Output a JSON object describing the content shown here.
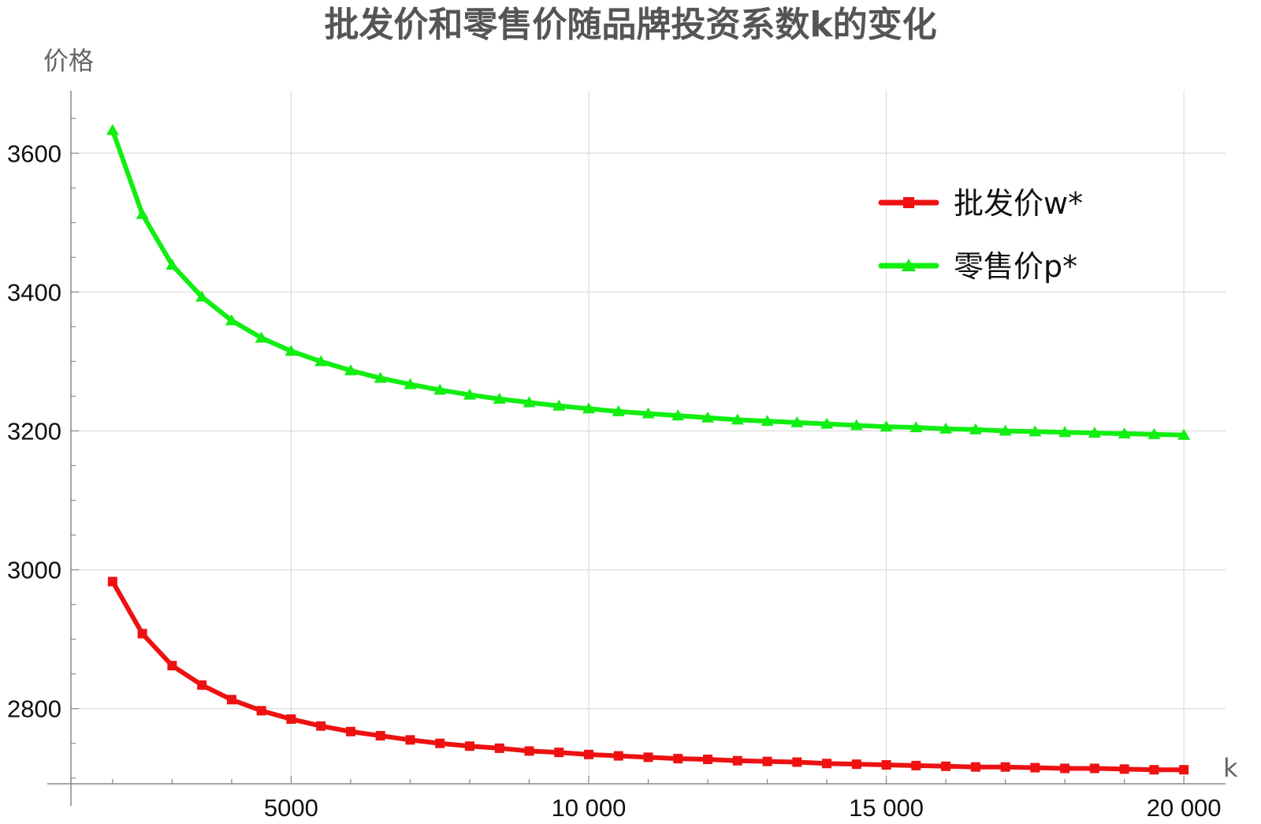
{
  "chart_data": {
    "type": "line",
    "title": "批发价和零售价随品牌投资系数k的变化",
    "xlabel": "k",
    "ylabel": "价格",
    "xlim": [
      1300,
      20700
    ],
    "ylim": [
      2660,
      3690
    ],
    "x_ticks": [
      5000,
      10000,
      15000,
      20000
    ],
    "x_tick_labels": [
      "5000",
      "10 000",
      "15 000",
      "20 000"
    ],
    "y_ticks": [
      2800,
      3000,
      3200,
      3400,
      3600
    ],
    "y_tick_labels": [
      "2800",
      "3000",
      "3200",
      "3400",
      "3600"
    ],
    "grid": true,
    "legend_position": "top-right",
    "x": [
      2000,
      2500,
      3000,
      3500,
      4000,
      4500,
      5000,
      5500,
      6000,
      6500,
      7000,
      7500,
      8000,
      8500,
      9000,
      9500,
      10000,
      10500,
      11000,
      11500,
      12000,
      12500,
      13000,
      13500,
      14000,
      14500,
      15000,
      15500,
      16000,
      16500,
      17000,
      17500,
      18000,
      18500,
      19000,
      19500,
      20000
    ],
    "series": [
      {
        "name": "批发价w*",
        "color": "#ee1111",
        "marker": "square",
        "values": [
          2983,
          2908,
          2862,
          2834,
          2813,
          2797,
          2785,
          2775,
          2767,
          2761,
          2755,
          2750,
          2746,
          2743,
          2739,
          2737,
          2734,
          2732,
          2730,
          2728,
          2727,
          2725,
          2724,
          2723,
          2721,
          2720,
          2719,
          2718,
          2717,
          2716,
          2716,
          2715,
          2714,
          2714,
          2713,
          2712,
          2712
        ]
      },
      {
        "name": "零售价p*",
        "color": "#11ee11",
        "marker": "triangle",
        "values": [
          3633,
          3512,
          3439,
          3393,
          3359,
          3334,
          3315,
          3300,
          3287,
          3276,
          3267,
          3259,
          3252,
          3246,
          3241,
          3236,
          3232,
          3228,
          3225,
          3222,
          3219,
          3216,
          3214,
          3212,
          3210,
          3208,
          3206,
          3205,
          3203,
          3202,
          3200,
          3199,
          3198,
          3197,
          3196,
          3195,
          3194
        ]
      }
    ]
  }
}
